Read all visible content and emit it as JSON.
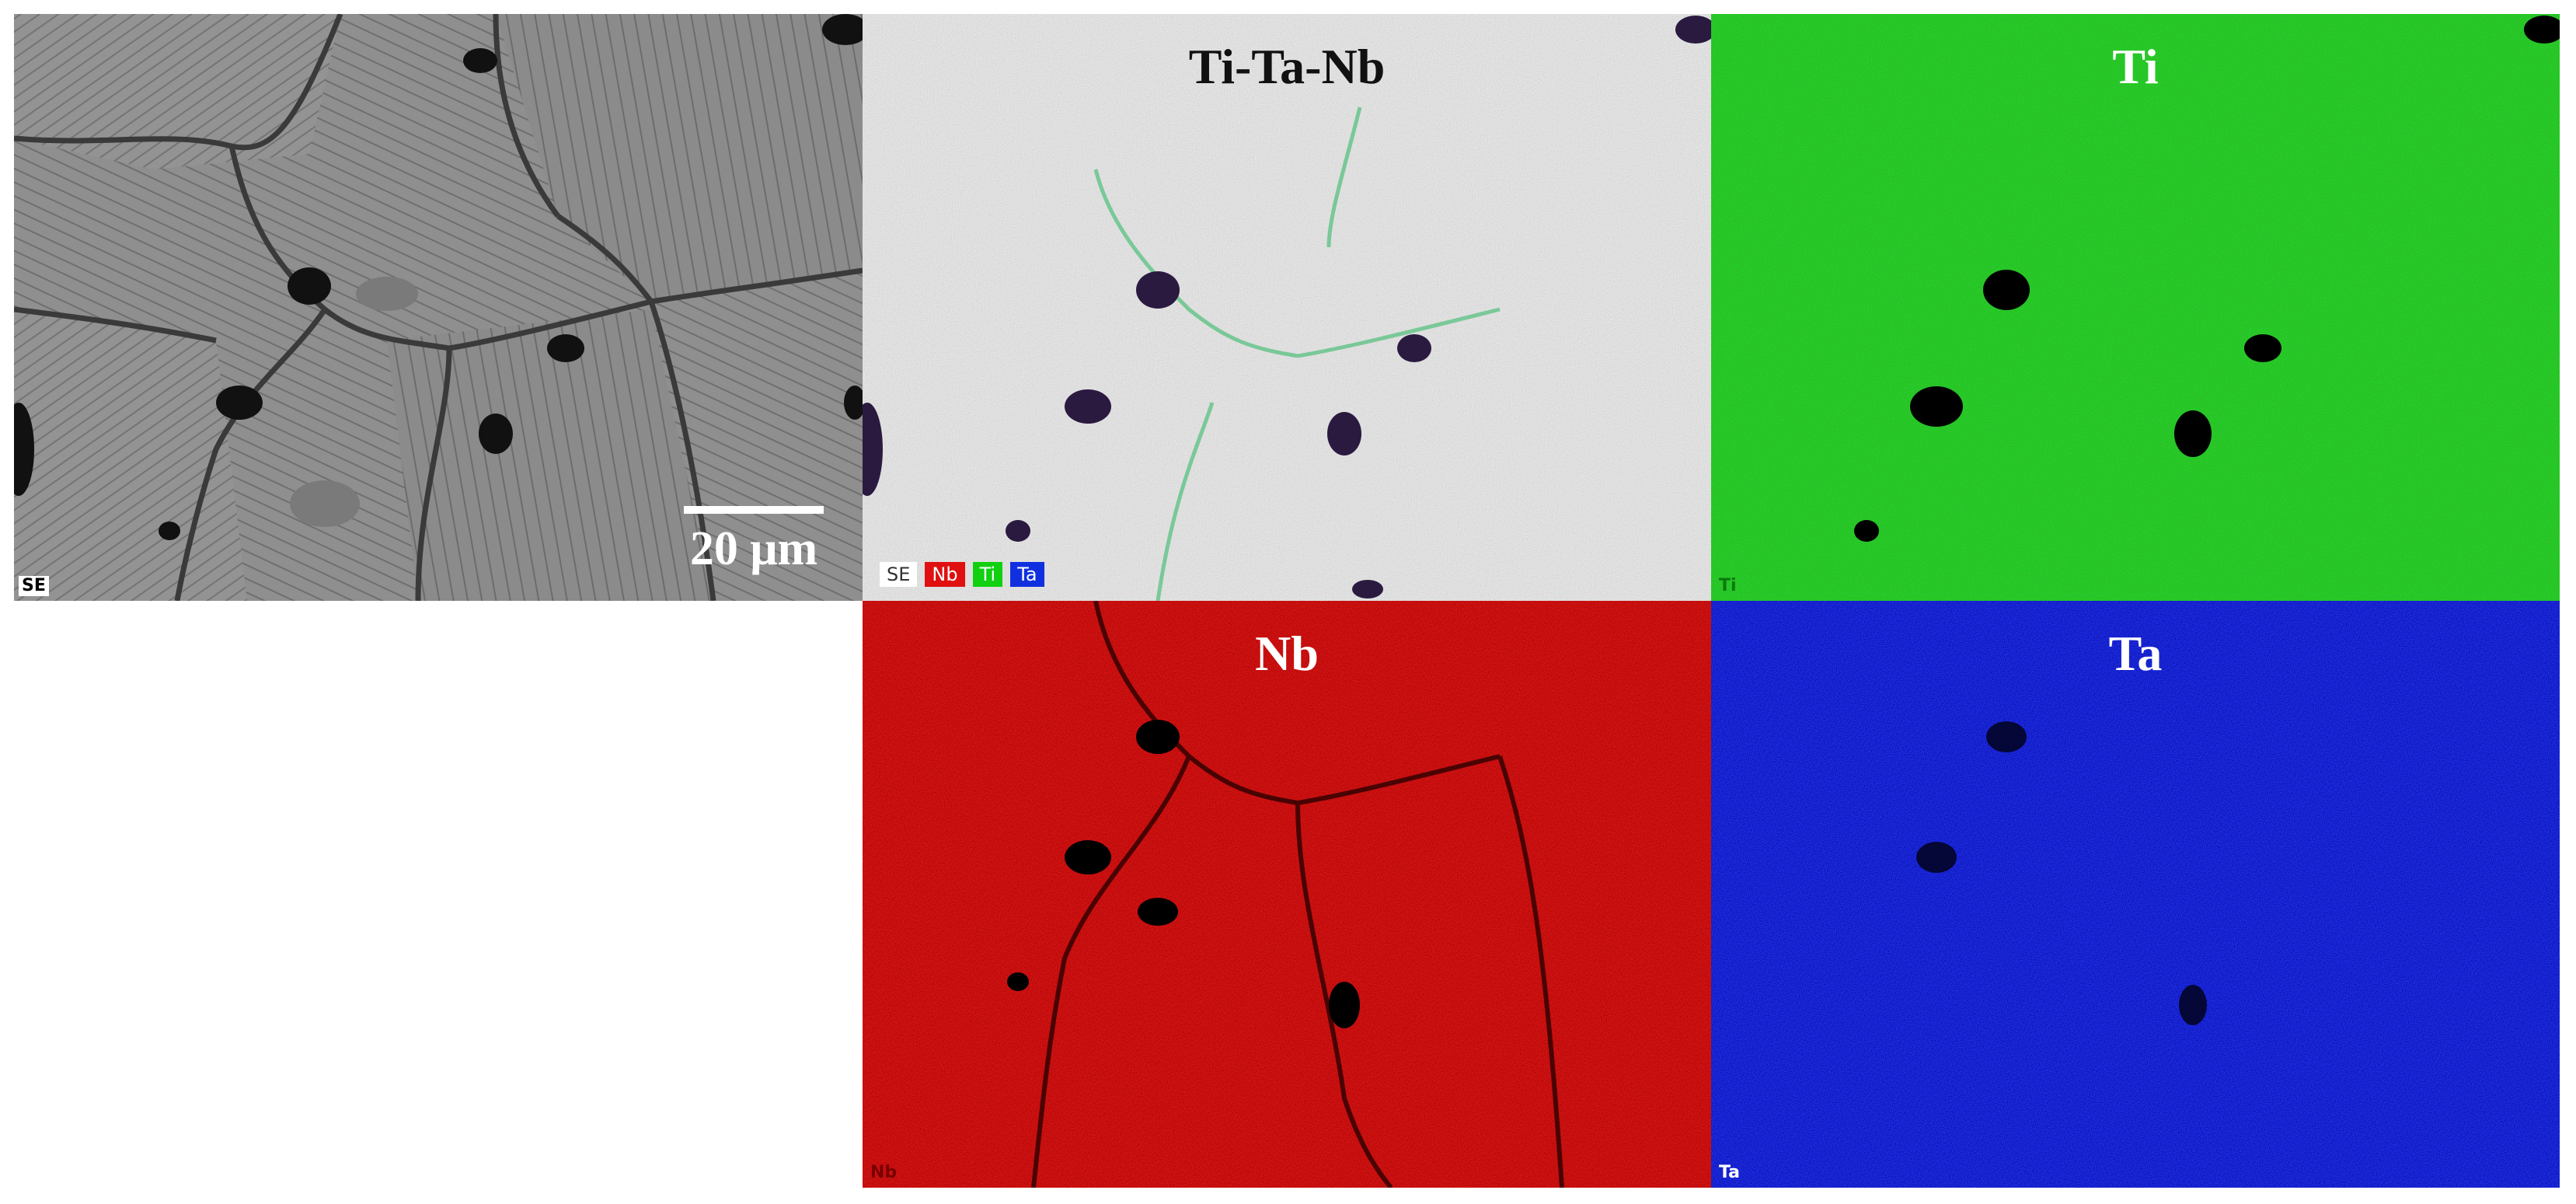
{
  "panels": {
    "se": {
      "corner_label": "SE",
      "scale_bar": "20 μm"
    },
    "composite": {
      "title": "Ti-Ta-Nb",
      "legend": [
        {
          "label": "SE",
          "color": "#ffffff",
          "text_color": "#333333"
        },
        {
          "label": "Nb",
          "color": "#e01010",
          "text_color": "#ffffff"
        },
        {
          "label": "Ti",
          "color": "#10d010",
          "text_color": "#ffffff"
        },
        {
          "label": "Ta",
          "color": "#1030e0",
          "text_color": "#ffffff"
        }
      ]
    },
    "ti": {
      "title": "Ti",
      "corner_label": "Ti",
      "color": "#1fd41f"
    },
    "nb": {
      "title": "Nb",
      "corner_label": "Nb",
      "color": "#d81414"
    },
    "ta": {
      "title": "Ta",
      "corner_label": "Ta",
      "color": "#1f2fe8"
    }
  }
}
